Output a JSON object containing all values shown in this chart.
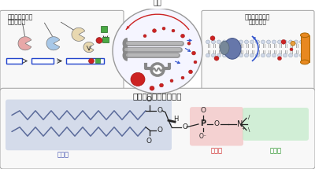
{
  "title": "ホスファチジルコリン",
  "lipid_acid_label": "脂肪酸",
  "phosphoric_acid_label": "リン酸",
  "choline_label": "コリン",
  "lipid_label": "脂質",
  "left_box_label1": "脂質を合成する",
  "left_box_label2": "たんぱく質",
  "right_box_label1": "脂質を輸送する",
  "right_box_label2": "たんぱく質",
  "bg_color": "#ffffff",
  "fatty_acid_bg": "#b8c4e0",
  "phospho_bg": "#f2b8b8",
  "choline_bg": "#b8e8c0",
  "chain_color": "#5a6a9a",
  "bond_color": "#222222",
  "pacman_pink": "#e8a8a8",
  "pacman_blue": "#a8c8e8",
  "pacman_beige": "#e8d8b0",
  "green_sq": "#4aaa44",
  "red_dot_color": "#cc2222",
  "blue_rect_edge": "#2244cc",
  "cell_fill": "#f5f5ff",
  "er_color": "#888888",
  "arrow_blue": "#3355cc",
  "panel_edge": "#aaaaaa",
  "membrane_head": "#ddddee",
  "orange_prot": "#e88820",
  "dark_prot": "#556688"
}
